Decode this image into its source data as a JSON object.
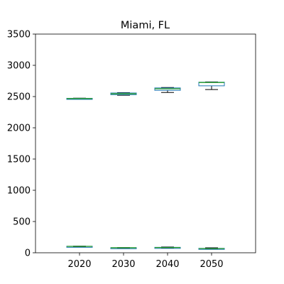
{
  "chart_data": {
    "type": "box",
    "title": "Miami, FL",
    "xlabel": "",
    "ylabel": "",
    "categories": [
      "2020",
      "2030",
      "2040",
      "2050"
    ],
    "ylim": [
      0,
      3500
    ],
    "yticks": [
      "0",
      "500",
      "1000",
      "1500",
      "2000",
      "2500",
      "3000",
      "3500"
    ],
    "grid": false,
    "legend": "none",
    "series": [
      {
        "boxes": [
          {
            "category": "2020",
            "whislo": 2462,
            "q1": 2465,
            "med": 2468,
            "q3": 2472,
            "whishi": 2475
          },
          {
            "category": "2030",
            "whislo": 2522,
            "q1": 2530,
            "med": 2545,
            "q3": 2557,
            "whishi": 2562
          },
          {
            "category": "2040",
            "whislo": 2565,
            "q1": 2600,
            "med": 2625,
            "q3": 2638,
            "whishi": 2645
          },
          {
            "category": "2050",
            "whislo": 2612,
            "q1": 2672,
            "med": 2725,
            "q3": 2730,
            "whishi": 2735
          }
        ]
      },
      {
        "boxes": [
          {
            "category": "2020",
            "whislo": 98,
            "q1": 100,
            "med": 102,
            "q3": 104,
            "whishi": 106
          },
          {
            "category": "2030",
            "whislo": 75,
            "q1": 77,
            "med": 80,
            "q3": 82,
            "whishi": 84
          },
          {
            "category": "2040",
            "whislo": 78,
            "q1": 81,
            "med": 84,
            "q3": 87,
            "whishi": 92
          },
          {
            "category": "2050",
            "whislo": 62,
            "q1": 64,
            "med": 67,
            "q3": 71,
            "whishi": 80
          }
        ]
      }
    ],
    "colors": {
      "box": "#1f77b4",
      "median": "#2ca02c",
      "whisker": "#000000",
      "axis": "#000000",
      "background": "#ffffff"
    }
  }
}
